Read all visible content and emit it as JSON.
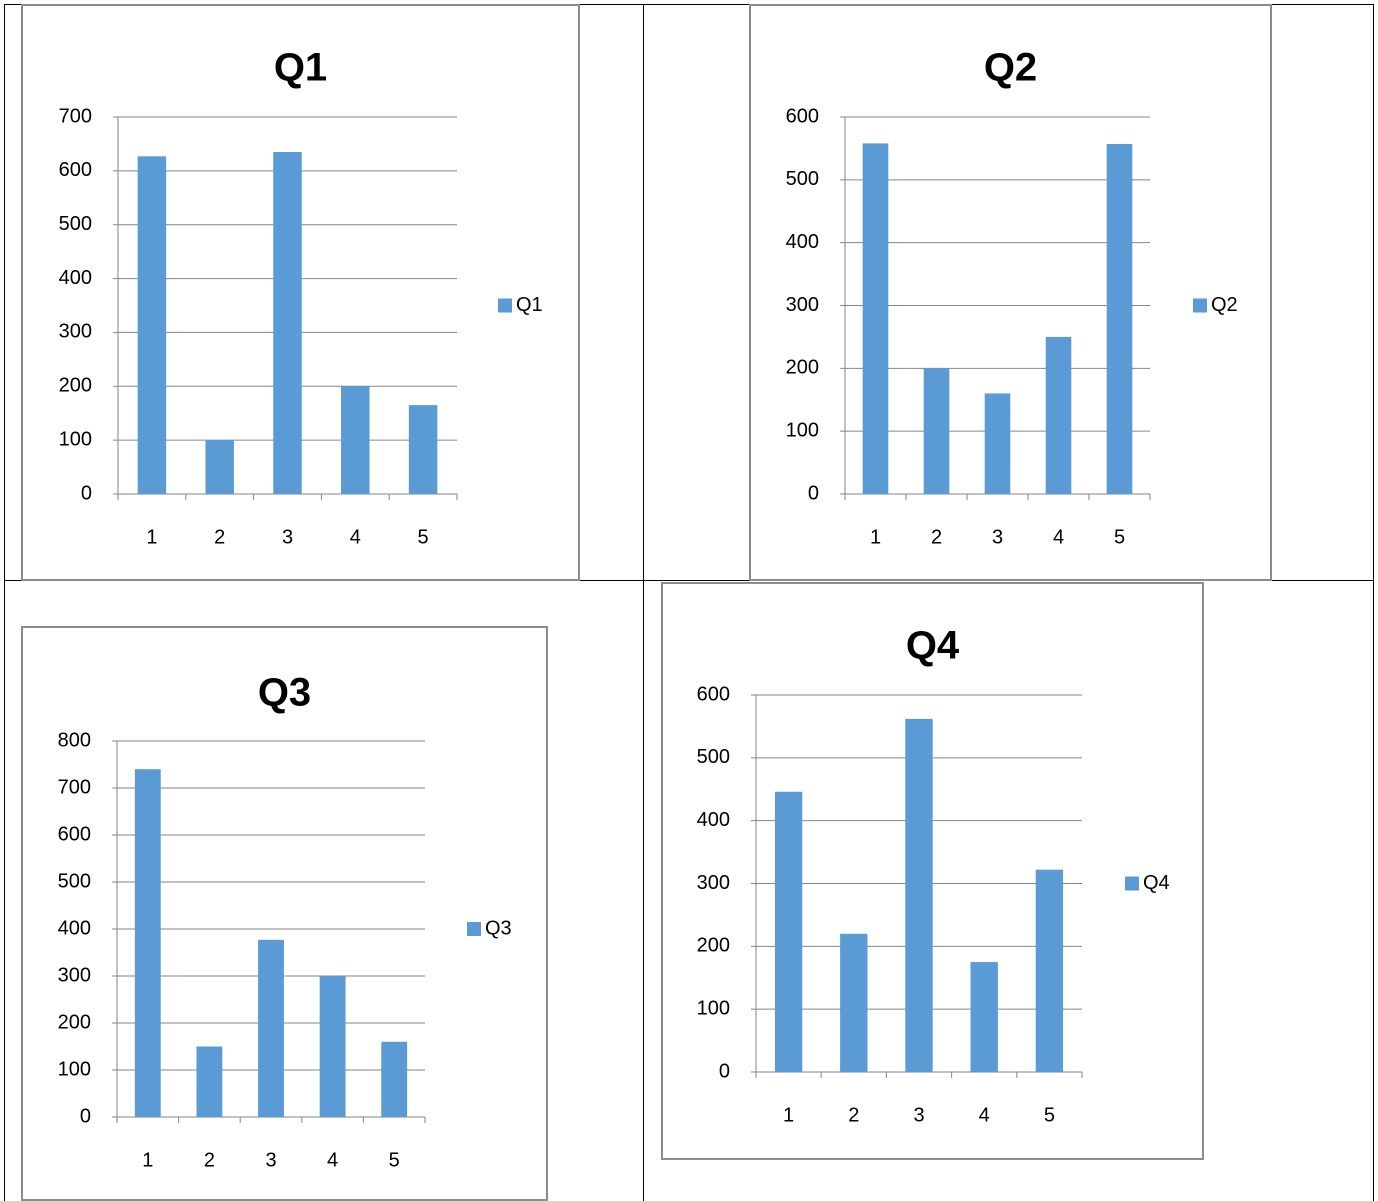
{
  "colors": {
    "bar": "#5b9bd5",
    "gridline": "#868686",
    "frame": "#8c8c8c",
    "table_border": "#000000"
  },
  "chart_data": [
    {
      "type": "bar",
      "title": "Q1",
      "categories": [
        "1",
        "2",
        "3",
        "4",
        "5"
      ],
      "series": [
        {
          "name": "Q1",
          "values": [
            627,
            100,
            635,
            200,
            165
          ]
        }
      ],
      "ylim": [
        0,
        700
      ],
      "yticks": [
        "0",
        "100",
        "200",
        "300",
        "400",
        "500",
        "600",
        "700"
      ],
      "grid": true,
      "legend": "right"
    },
    {
      "type": "bar",
      "title": "Q2",
      "categories": [
        "1",
        "2",
        "3",
        "4",
        "5"
      ],
      "series": [
        {
          "name": "Q2",
          "values": [
            558,
            200,
            160,
            250,
            557
          ]
        }
      ],
      "ylim": [
        0,
        600
      ],
      "yticks": [
        "0",
        "100",
        "200",
        "300",
        "400",
        "500",
        "600"
      ],
      "grid": true,
      "legend": "right"
    },
    {
      "type": "bar",
      "title": "Q3",
      "categories": [
        "1",
        "2",
        "3",
        "4",
        "5"
      ],
      "series": [
        {
          "name": "Q3",
          "values": [
            740,
            150,
            377,
            300,
            160
          ]
        }
      ],
      "ylim": [
        0,
        800
      ],
      "yticks": [
        "0",
        "100",
        "200",
        "300",
        "400",
        "500",
        "600",
        "700",
        "800"
      ],
      "grid": true,
      "legend": "right"
    },
    {
      "type": "bar",
      "title": "Q4",
      "categories": [
        "1",
        "2",
        "3",
        "4",
        "5"
      ],
      "series": [
        {
          "name": "Q4",
          "values": [
            446,
            220,
            562,
            175,
            322
          ]
        }
      ],
      "ylim": [
        0,
        600
      ],
      "yticks": [
        "0",
        "100",
        "200",
        "300",
        "400",
        "500",
        "600"
      ],
      "grid": true,
      "legend": "right"
    }
  ]
}
